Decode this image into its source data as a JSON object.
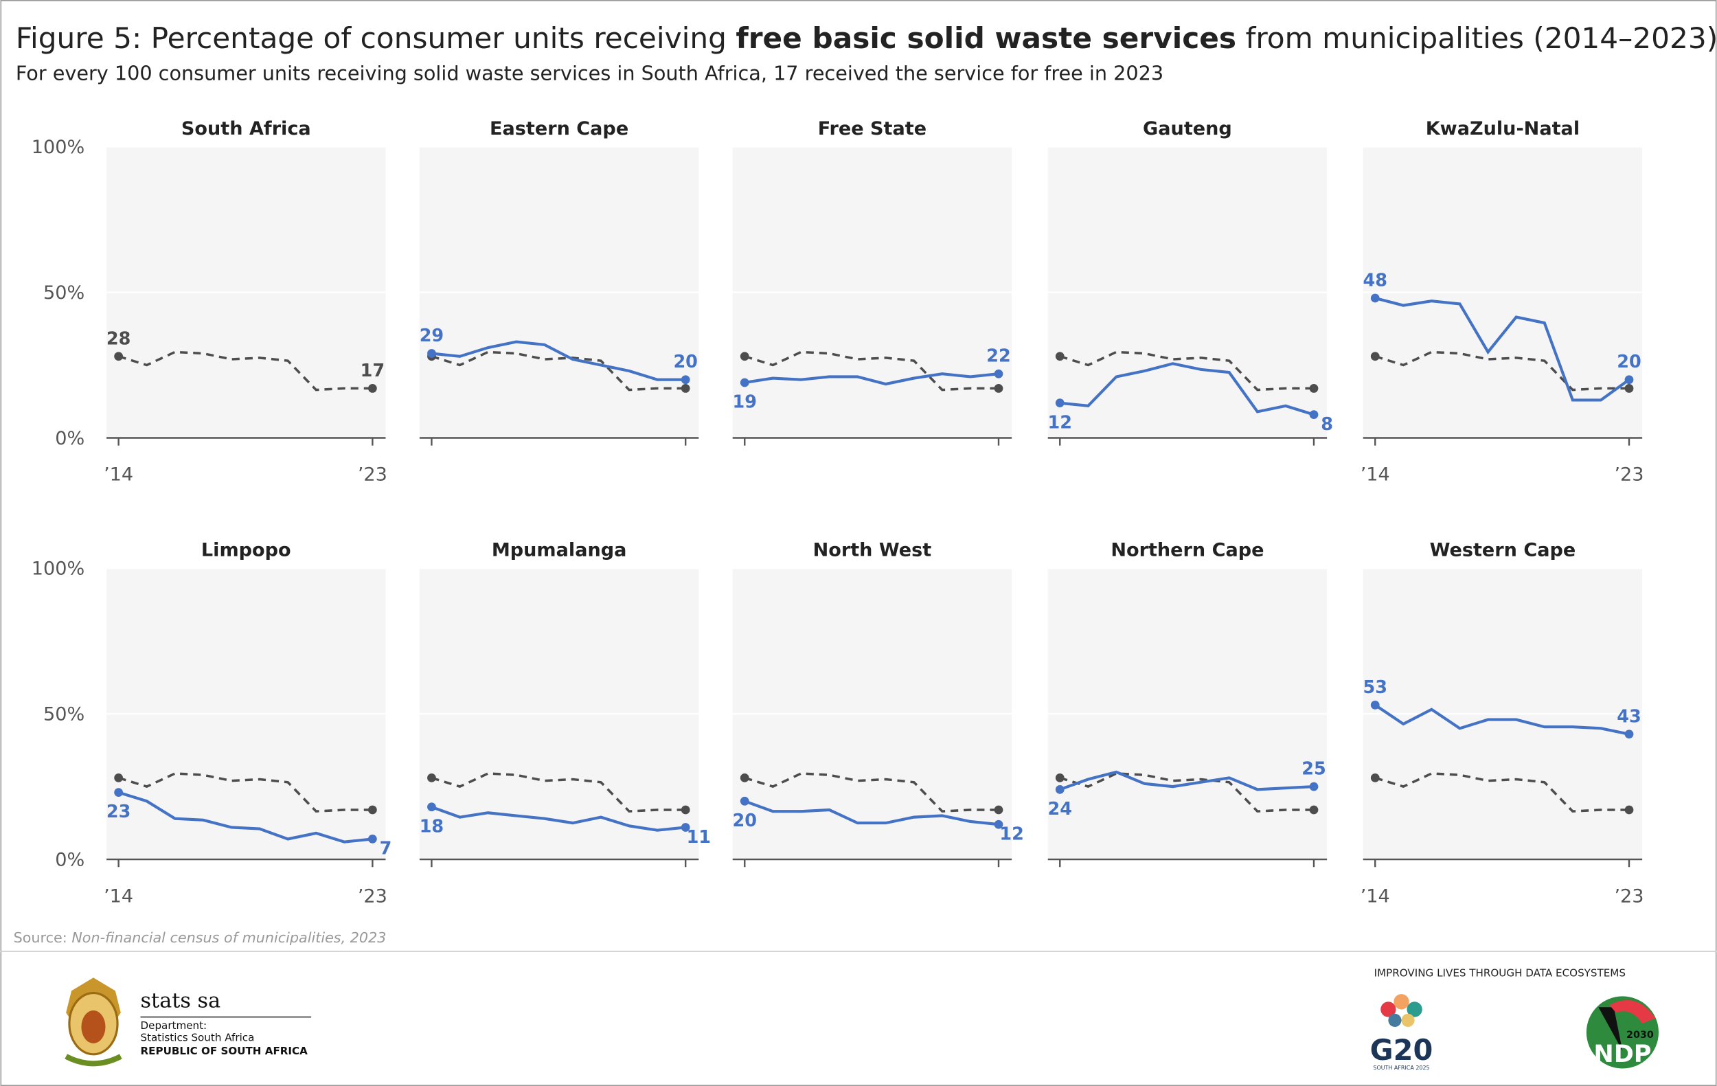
{
  "title_parts": [
    "Figure 5: Percentage of consumer units receiving ",
    "free basic solid waste services",
    " from municipalities (2014–2023)"
  ],
  "subtitle": "For every 100 consumer units receiving solid waste services in South Africa, 17 received the service for free in 2023",
  "source_label": "Source:",
  "source_text": "Non-financial census of municipalities, 2023",
  "chart_data": [
    {
      "type": "line",
      "title": "South Africa",
      "x": [
        2014,
        2015,
        2016,
        2017,
        2018,
        2019,
        2020,
        2021,
        2022,
        2023
      ],
      "xlim": [
        2014,
        2023
      ],
      "xticks": [
        {
          "value": 2014,
          "label": "’14"
        },
        {
          "value": 2023,
          "label": "’23"
        }
      ],
      "ylim": [
        0,
        100
      ],
      "yticks": [
        {
          "value": 0,
          "label": "0%"
        },
        {
          "value": 50,
          "label": "50%"
        },
        {
          "value": 100,
          "label": "100%"
        }
      ],
      "grid": true,
      "series": [
        {
          "color": "#4d4d4d",
          "dashed": true,
          "end_labels": true,
          "values": [
            28,
            25,
            29.5,
            29,
            27,
            27.5,
            26.5,
            16.5,
            17,
            17
          ]
        }
      ]
    },
    {
      "type": "line",
      "title": "Eastern Cape",
      "x": [
        2014,
        2015,
        2016,
        2017,
        2018,
        2019,
        2020,
        2021,
        2022,
        2023
      ],
      "xlim": [
        2014,
        2023
      ],
      "xticks": [
        {
          "value": 2014,
          "label": null
        },
        {
          "value": 2023,
          "label": null
        }
      ],
      "ylim": [
        0,
        100
      ],
      "yticks": [
        {
          "value": 0,
          "label": null
        },
        {
          "value": 50,
          "label": null
        },
        {
          "value": 100,
          "label": null
        }
      ],
      "grid": true,
      "series": [
        {
          "color": "#4d4d4d",
          "dashed": true,
          "end_labels": false,
          "values": [
            28,
            25,
            29.5,
            29,
            27,
            27.5,
            26.5,
            16.5,
            17,
            17
          ]
        },
        {
          "color": "#4472c4",
          "dashed": false,
          "end_labels": true,
          "values": [
            29,
            28,
            31,
            33,
            32,
            27,
            25,
            23,
            20,
            20
          ]
        }
      ]
    },
    {
      "type": "line",
      "title": "Free State",
      "x": [
        2014,
        2015,
        2016,
        2017,
        2018,
        2019,
        2020,
        2021,
        2022,
        2023
      ],
      "xlim": [
        2014,
        2023
      ],
      "xticks": [
        {
          "value": 2014,
          "label": null
        },
        {
          "value": 2023,
          "label": null
        }
      ],
      "ylim": [
        0,
        100
      ],
      "yticks": [
        {
          "value": 0,
          "label": null
        },
        {
          "value": 50,
          "label": null
        },
        {
          "value": 100,
          "label": null
        }
      ],
      "grid": true,
      "series": [
        {
          "color": "#4d4d4d",
          "dashed": true,
          "end_labels": false,
          "values": [
            28,
            25,
            29.5,
            29,
            27,
            27.5,
            26.5,
            16.5,
            17,
            17
          ]
        },
        {
          "color": "#4472c4",
          "dashed": false,
          "end_labels": true,
          "values": [
            19,
            20.5,
            20,
            21,
            21,
            18.5,
            20.5,
            22,
            21,
            22
          ]
        }
      ]
    },
    {
      "type": "line",
      "title": "Gauteng",
      "x": [
        2014,
        2015,
        2016,
        2017,
        2018,
        2019,
        2020,
        2021,
        2022,
        2023
      ],
      "xlim": [
        2014,
        2023
      ],
      "xticks": [
        {
          "value": 2014,
          "label": null
        },
        {
          "value": 2023,
          "label": null
        }
      ],
      "ylim": [
        0,
        100
      ],
      "yticks": [
        {
          "value": 0,
          "label": null
        },
        {
          "value": 50,
          "label": null
        },
        {
          "value": 100,
          "label": null
        }
      ],
      "grid": true,
      "series": [
        {
          "color": "#4d4d4d",
          "dashed": true,
          "end_labels": false,
          "values": [
            28,
            25,
            29.5,
            29,
            27,
            27.5,
            26.5,
            16.5,
            17,
            17
          ]
        },
        {
          "color": "#4472c4",
          "dashed": false,
          "end_labels": true,
          "values": [
            12,
            11,
            21,
            23,
            25.5,
            23.5,
            22.5,
            9,
            11,
            8
          ]
        }
      ]
    },
    {
      "type": "line",
      "title": "KwaZulu-Natal",
      "x": [
        2014,
        2015,
        2016,
        2017,
        2018,
        2019,
        2020,
        2021,
        2022,
        2023
      ],
      "xlim": [
        2014,
        2023
      ],
      "xticks": [
        {
          "value": 2014,
          "label": "’14"
        },
        {
          "value": 2023,
          "label": "’23"
        }
      ],
      "ylim": [
        0,
        100
      ],
      "yticks": [
        {
          "value": 0,
          "label": null
        },
        {
          "value": 50,
          "label": null
        },
        {
          "value": 100,
          "label": null
        }
      ],
      "grid": true,
      "series": [
        {
          "color": "#4d4d4d",
          "dashed": true,
          "end_labels": false,
          "values": [
            28,
            25,
            29.5,
            29,
            27,
            27.5,
            26.5,
            16.5,
            17,
            17
          ]
        },
        {
          "color": "#4472c4",
          "dashed": false,
          "end_labels": true,
          "values": [
            48,
            45.5,
            47,
            46,
            29.5,
            41.5,
            39.5,
            13,
            13,
            20
          ]
        }
      ]
    },
    {
      "type": "line",
      "title": "Limpopo",
      "x": [
        2014,
        2015,
        2016,
        2017,
        2018,
        2019,
        2020,
        2021,
        2022,
        2023
      ],
      "xlim": [
        2014,
        2023
      ],
      "xticks": [
        {
          "value": 2014,
          "label": "’14"
        },
        {
          "value": 2023,
          "label": "’23"
        }
      ],
      "ylim": [
        0,
        100
      ],
      "yticks": [
        {
          "value": 0,
          "label": "0%"
        },
        {
          "value": 50,
          "label": "50%"
        },
        {
          "value": 100,
          "label": "100%"
        }
      ],
      "grid": true,
      "series": [
        {
          "color": "#4d4d4d",
          "dashed": true,
          "end_labels": false,
          "values": [
            28,
            25,
            29.5,
            29,
            27,
            27.5,
            26.5,
            16.5,
            17,
            17
          ]
        },
        {
          "color": "#4472c4",
          "dashed": false,
          "end_labels": true,
          "values": [
            23,
            20,
            14,
            13.5,
            11,
            10.5,
            7,
            9,
            6,
            7
          ]
        }
      ]
    },
    {
      "type": "line",
      "title": "Mpumalanga",
      "x": [
        2014,
        2015,
        2016,
        2017,
        2018,
        2019,
        2020,
        2021,
        2022,
        2023
      ],
      "xlim": [
        2014,
        2023
      ],
      "xticks": [
        {
          "value": 2014,
          "label": null
        },
        {
          "value": 2023,
          "label": null
        }
      ],
      "ylim": [
        0,
        100
      ],
      "yticks": [
        {
          "value": 0,
          "label": null
        },
        {
          "value": 50,
          "label": null
        },
        {
          "value": 100,
          "label": null
        }
      ],
      "grid": true,
      "series": [
        {
          "color": "#4d4d4d",
          "dashed": true,
          "end_labels": false,
          "values": [
            28,
            25,
            29.5,
            29,
            27,
            27.5,
            26.5,
            16.5,
            17,
            17
          ]
        },
        {
          "color": "#4472c4",
          "dashed": false,
          "end_labels": true,
          "values": [
            18,
            14.5,
            16,
            15,
            14,
            12.5,
            14.5,
            11.5,
            10,
            11
          ]
        }
      ]
    },
    {
      "type": "line",
      "title": "North West",
      "x": [
        2014,
        2015,
        2016,
        2017,
        2018,
        2019,
        2020,
        2021,
        2022,
        2023
      ],
      "xlim": [
        2014,
        2023
      ],
      "xticks": [
        {
          "value": 2014,
          "label": null
        },
        {
          "value": 2023,
          "label": null
        }
      ],
      "ylim": [
        0,
        100
      ],
      "yticks": [
        {
          "value": 0,
          "label": null
        },
        {
          "value": 50,
          "label": null
        },
        {
          "value": 100,
          "label": null
        }
      ],
      "grid": true,
      "series": [
        {
          "color": "#4d4d4d",
          "dashed": true,
          "end_labels": false,
          "values": [
            28,
            25,
            29.5,
            29,
            27,
            27.5,
            26.5,
            16.5,
            17,
            17
          ]
        },
        {
          "color": "#4472c4",
          "dashed": false,
          "end_labels": true,
          "values": [
            20,
            16.5,
            16.5,
            17,
            12.5,
            12.5,
            14.5,
            15,
            13,
            12
          ]
        }
      ]
    },
    {
      "type": "line",
      "title": "Northern Cape",
      "x": [
        2014,
        2015,
        2016,
        2017,
        2018,
        2019,
        2020,
        2021,
        2022,
        2023
      ],
      "xlim": [
        2014,
        2023
      ],
      "xticks": [
        {
          "value": 2014,
          "label": null
        },
        {
          "value": 2023,
          "label": null
        }
      ],
      "ylim": [
        0,
        100
      ],
      "yticks": [
        {
          "value": 0,
          "label": null
        },
        {
          "value": 50,
          "label": null
        },
        {
          "value": 100,
          "label": null
        }
      ],
      "grid": true,
      "series": [
        {
          "color": "#4d4d4d",
          "dashed": true,
          "end_labels": false,
          "values": [
            28,
            25,
            29.5,
            29,
            27,
            27.5,
            26.5,
            16.5,
            17,
            17
          ]
        },
        {
          "color": "#4472c4",
          "dashed": false,
          "end_labels": true,
          "values": [
            24,
            27.5,
            30,
            26,
            25,
            26.5,
            28,
            24,
            24.5,
            25
          ]
        }
      ]
    },
    {
      "type": "line",
      "title": "Western Cape",
      "x": [
        2014,
        2015,
        2016,
        2017,
        2018,
        2019,
        2020,
        2021,
        2022,
        2023
      ],
      "xlim": [
        2014,
        2023
      ],
      "xticks": [
        {
          "value": 2014,
          "label": "’14"
        },
        {
          "value": 2023,
          "label": "’23"
        }
      ],
      "ylim": [
        0,
        100
      ],
      "yticks": [
        {
          "value": 0,
          "label": null
        },
        {
          "value": 50,
          "label": null
        },
        {
          "value": 100,
          "label": null
        }
      ],
      "grid": true,
      "series": [
        {
          "color": "#4d4d4d",
          "dashed": true,
          "end_labels": false,
          "values": [
            28,
            25,
            29.5,
            29,
            27,
            27.5,
            26.5,
            16.5,
            17,
            17
          ]
        },
        {
          "color": "#4472c4",
          "dashed": false,
          "end_labels": true,
          "values": [
            53,
            46.5,
            51.5,
            45,
            48,
            48,
            45.5,
            45.5,
            45,
            43
          ]
        }
      ]
    }
  ],
  "footer": {
    "org": "stats sa",
    "dept": "Department:",
    "dept_name": "Statistics South Africa",
    "republic": "REPUBLIC OF SOUTH AFRICA",
    "slogan": "IMPROVING LIVES THROUGH DATA ECOSYSTEMS",
    "g20": "G20",
    "g20_sub": "SOUTH AFRICA 2025",
    "ndp": "NDP",
    "ndp_year": "2030"
  }
}
